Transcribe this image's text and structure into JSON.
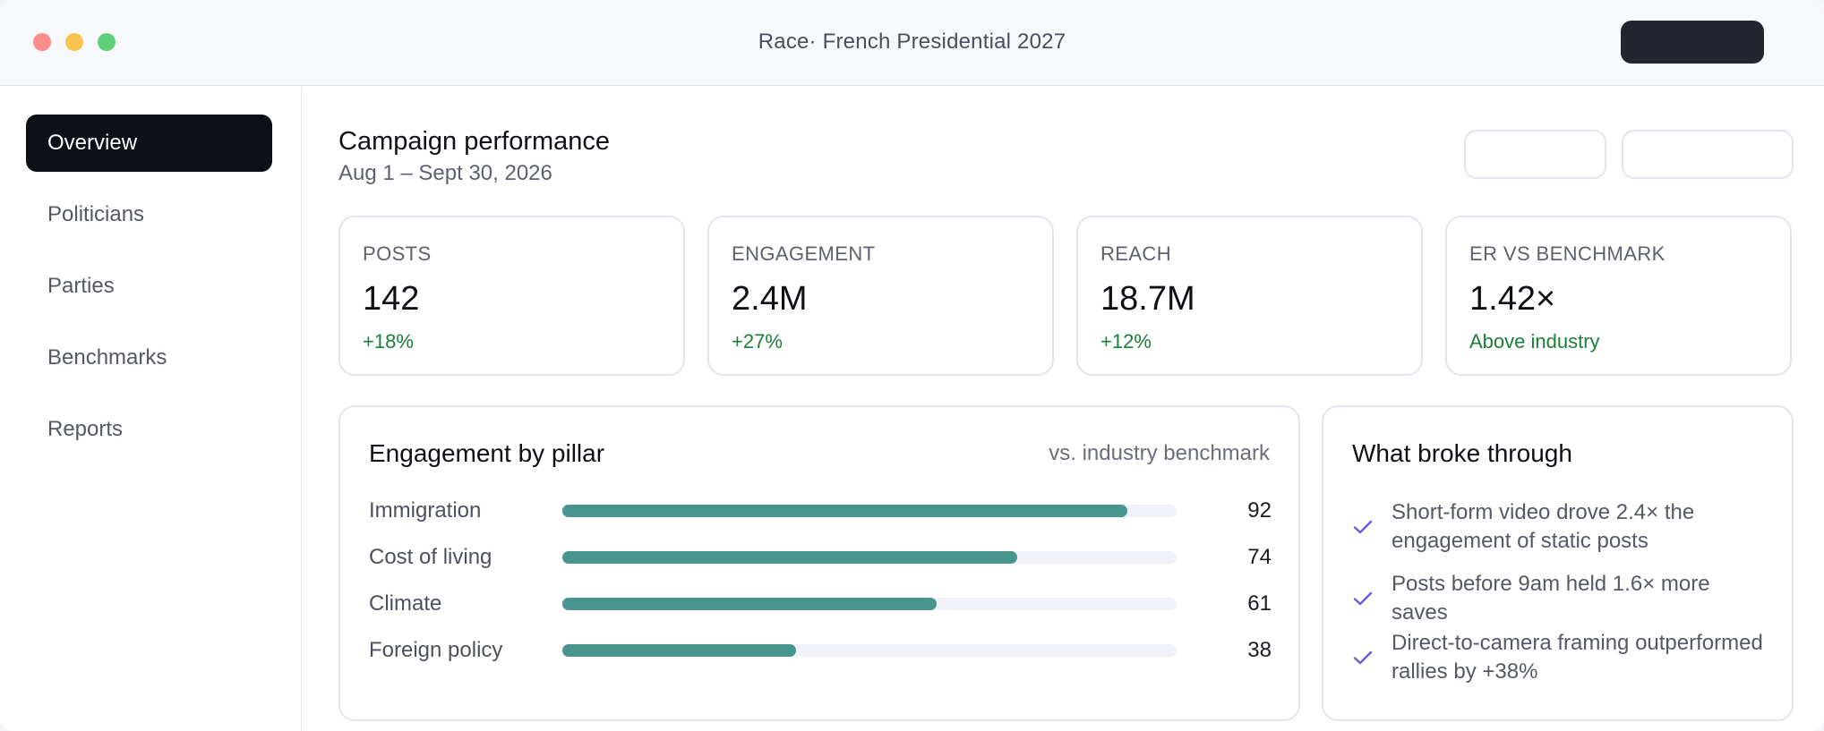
{
  "window": {
    "title": "Race· French Presidential 2027"
  },
  "sidebar": {
    "items": [
      {
        "label": "Overview",
        "active": true
      },
      {
        "label": "Politicians",
        "active": false
      },
      {
        "label": "Parties",
        "active": false
      },
      {
        "label": "Benchmarks",
        "active": false
      },
      {
        "label": "Reports",
        "active": false
      }
    ]
  },
  "header": {
    "title": "Campaign performance",
    "date_range": "Aug 1 – Sept 30, 2026"
  },
  "stats": [
    {
      "label": "POSTS",
      "value": "142",
      "delta": "+18%"
    },
    {
      "label": "ENGAGEMENT",
      "value": "2.4M",
      "delta": "+27%"
    },
    {
      "label": "REACH",
      "value": "18.7M",
      "delta": "+12%"
    },
    {
      "label": "ER VS BENCHMARK",
      "value": "1.42×",
      "delta": "Above industry"
    }
  ],
  "pillars": {
    "title": "Engagement by pillar",
    "note": "vs. industry benchmark",
    "rows": [
      {
        "label": "Immigration",
        "value": "92"
      },
      {
        "label": "Cost of living",
        "value": "74"
      },
      {
        "label": "Climate",
        "value": "61"
      },
      {
        "label": "Foreign policy",
        "value": "38"
      }
    ]
  },
  "insights": {
    "title": "What broke through",
    "items": [
      "Short-form video drove 2.4× the engagement of static posts",
      "Posts before 9am held 1.6× more saves",
      "Direct-to-camera framing outperformed rallies by +38%"
    ]
  },
  "colors": {
    "accent_bar": "#48948f",
    "positive": "#1a7f37",
    "check": "#6b5bd6",
    "nav_active": "#0e1018"
  },
  "icons": {
    "check": "check-icon"
  }
}
